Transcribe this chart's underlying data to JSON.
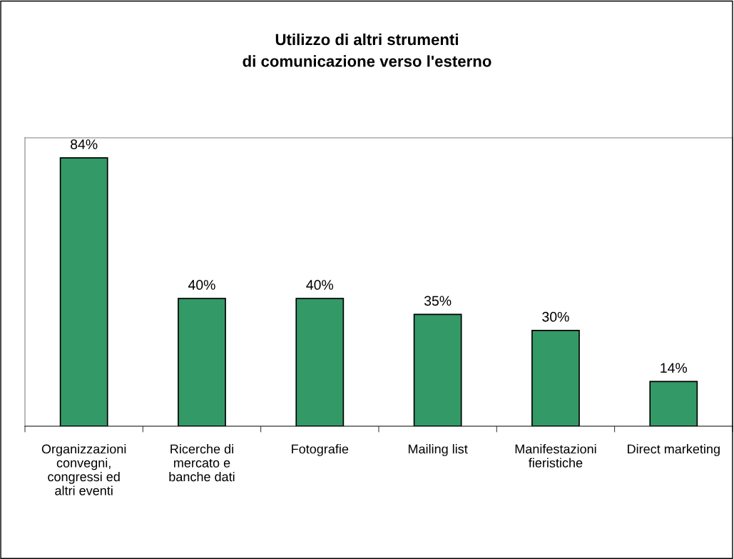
{
  "chart_data": {
    "type": "bar",
    "title": "Utilizzo di altri strumenti\ndi comunicazione verso l'esterno",
    "categories": [
      "Organizzazioni\nconvegni,\ncongressi ed\naltri eventi",
      "Ricerche di\nmercato e\nbanche dati",
      "Fotografie",
      "Mailing list",
      "Manifestazioni\nfieristiche",
      "Direct marketing"
    ],
    "values": [
      84,
      40,
      40,
      35,
      30,
      14
    ],
    "value_labels": [
      "84%",
      "40%",
      "40%",
      "35%",
      "30%",
      "14%"
    ],
    "color": "#339966",
    "grid": false,
    "legend": false,
    "tick_labels": "x"
  }
}
